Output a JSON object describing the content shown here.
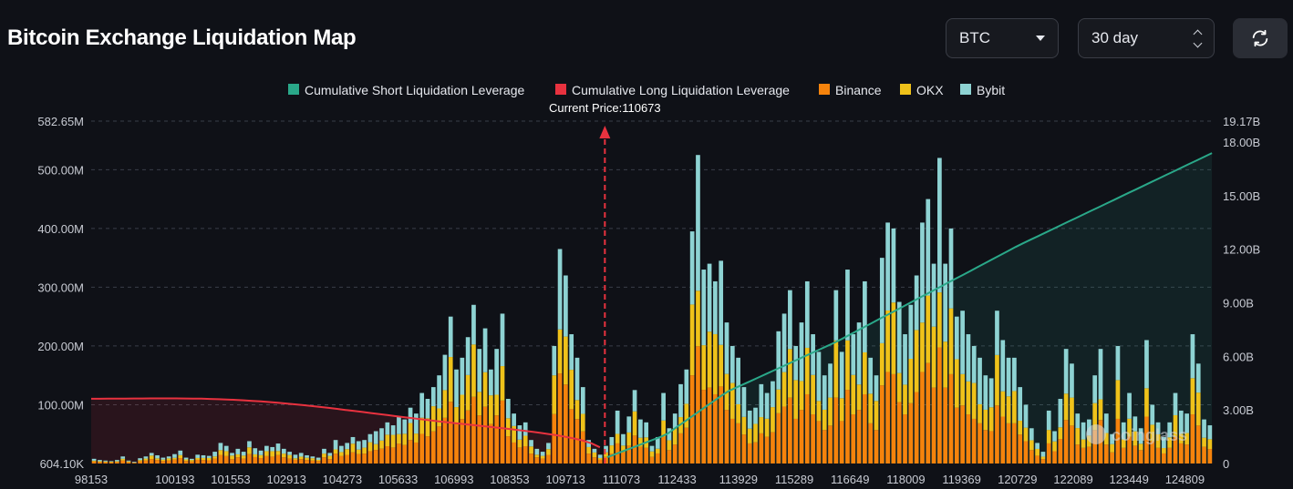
{
  "header": {
    "title": "Bitcoin Exchange Liquidation Map",
    "symbol_select": "BTC",
    "range_select": "30 day",
    "refresh_icon": "refresh-icon"
  },
  "colors": {
    "short_cum": "#2aa889",
    "long_cum": "#e8323f",
    "binance": "#f5830c",
    "okx": "#efc21a",
    "bybit": "#8ed3d3"
  },
  "watermark": "coinglass",
  "chart_data": {
    "type": "bar",
    "legend": [
      "Cumulative Short Liquidation Leverage",
      "Cumulative Long Liquidation Leverage",
      "Binance",
      "OKX",
      "Bybit"
    ],
    "legend_position": "top-center",
    "current_price_label": "Current Price:110673",
    "current_price": 110673,
    "x_range": [
      98153,
      125489
    ],
    "x_ticks": [
      "98153",
      "100193",
      "101553",
      "102913",
      "104273",
      "105633",
      "106993",
      "108353",
      "109713",
      "111073",
      "112433",
      "113929",
      "115289",
      "116649",
      "118009",
      "119369",
      "120729",
      "122089",
      "123449",
      "124809"
    ],
    "y_left_ticks": [
      "604.10K",
      "100.00M",
      "200.00M",
      "300.00M",
      "400.00M",
      "500.00M",
      "582.65M"
    ],
    "y_left_range": [
      0,
      582.65
    ],
    "y_right_ticks": [
      "0",
      "3.00B",
      "6.00B",
      "9.00B",
      "12.00B",
      "15.00B",
      "18.00B",
      "19.17B"
    ],
    "y_right_range": [
      0,
      19.17
    ],
    "grid": "dashed horizontal",
    "bar_totals_M": [
      8,
      6,
      5,
      4,
      6,
      12,
      5,
      3,
      9,
      12,
      18,
      14,
      10,
      12,
      16,
      22,
      10,
      8,
      15,
      14,
      13,
      20,
      35,
      30,
      18,
      25,
      20,
      38,
      26,
      22,
      30,
      28,
      34,
      25,
      20,
      15,
      18,
      14,
      12,
      10,
      25,
      18,
      40,
      30,
      35,
      45,
      38,
      40,
      50,
      55,
      60,
      70,
      65,
      80,
      75,
      95,
      85,
      120,
      110,
      130,
      150,
      185,
      250,
      160,
      180,
      215,
      270,
      195,
      230,
      160,
      195,
      255,
      110,
      85,
      65,
      70,
      40,
      25,
      20,
      35,
      200,
      365,
      320,
      220,
      180,
      130,
      40,
      25,
      15,
      30,
      45,
      90,
      50,
      80,
      125,
      75,
      70,
      30,
      45,
      120,
      60,
      85,
      135,
      160,
      395,
      525,
      330,
      340,
      310,
      345,
      240,
      200,
      180,
      130,
      90,
      95,
      135,
      120,
      140,
      225,
      255,
      295,
      200,
      240,
      310,
      220,
      190,
      150,
      170,
      295,
      190,
      330,
      220,
      240,
      310,
      180,
      150,
      350,
      410,
      400,
      275,
      220,
      270,
      320,
      410,
      450,
      340,
      520,
      340,
      400,
      250,
      260,
      220,
      200,
      180,
      150,
      145,
      260,
      210,
      180,
      180,
      130,
      100,
      60,
      35,
      20,
      90,
      55,
      110,
      195,
      170,
      85,
      70,
      75,
      150,
      195,
      85,
      50,
      200,
      70,
      120,
      80,
      60,
      210,
      100,
      70,
      45,
      70,
      120,
      90,
      85,
      220,
      170,
      75,
      65
    ]
  }
}
